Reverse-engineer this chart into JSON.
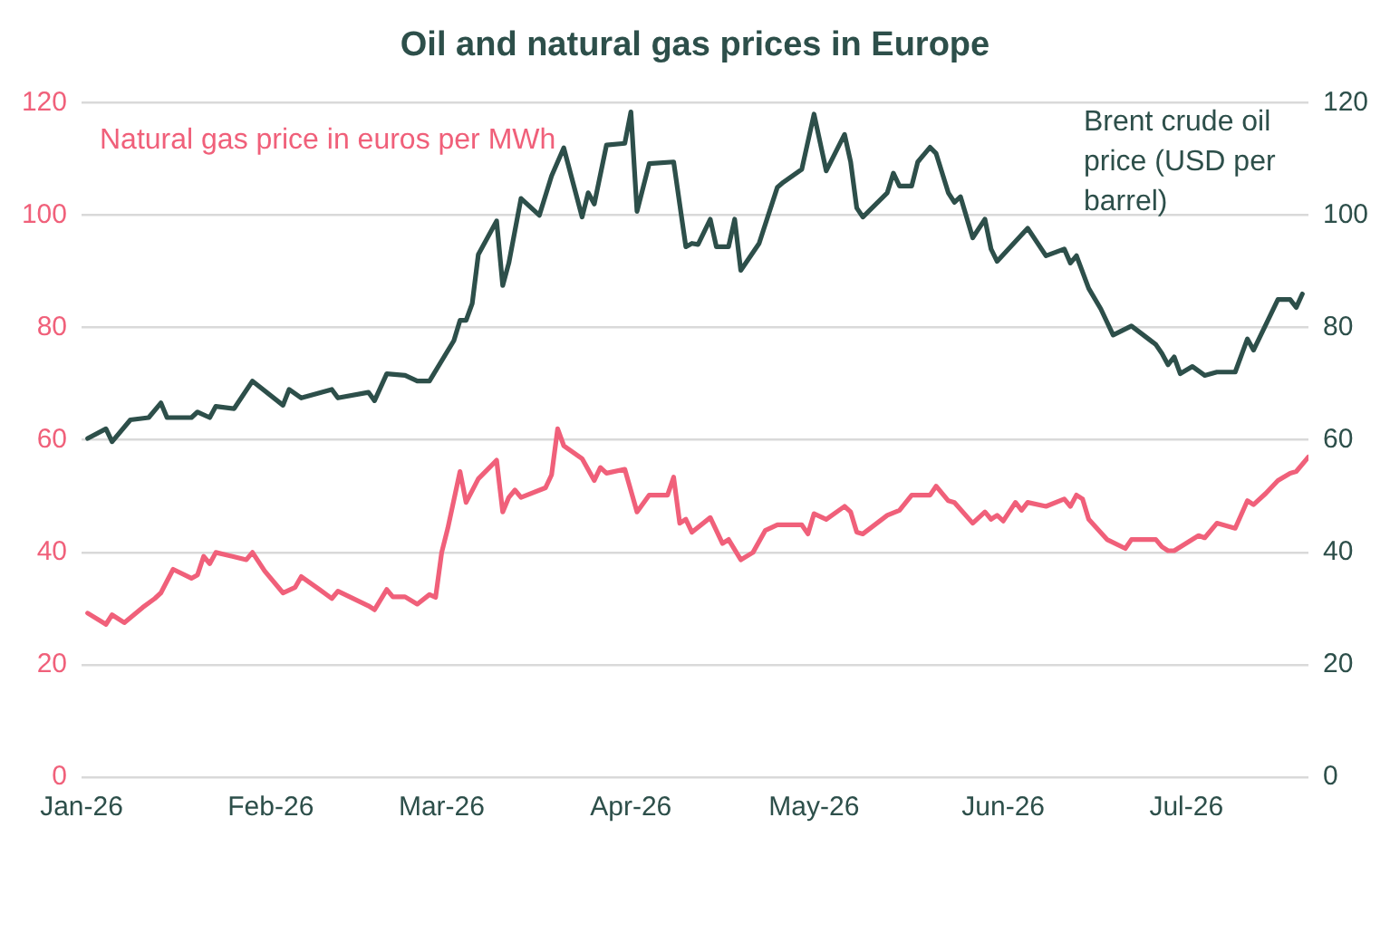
{
  "chart_data": {
    "type": "line",
    "title": "Oil and natural gas prices in Europe",
    "xlim": [
      "2026-01-01",
      "2026-07-21"
    ],
    "xticks": [
      {
        "value": "2026-01-01",
        "label": "Jan-26"
      },
      {
        "value": "2026-02-01",
        "label": "Feb-26"
      },
      {
        "value": "2026-03-01",
        "label": "Mar-26"
      },
      {
        "value": "2026-04-01",
        "label": "Apr-26"
      },
      {
        "value": "2026-05-01",
        "label": "May-26"
      },
      {
        "value": "2026-06-01",
        "label": "Jun-26"
      },
      {
        "value": "2026-07-01",
        "label": "Jul-26"
      }
    ],
    "ylim": [
      0,
      120
    ],
    "yticks": [
      0,
      20,
      40,
      60,
      80,
      100,
      120
    ],
    "y2lim": [
      0,
      120
    ],
    "y2ticks": [
      0,
      20,
      40,
      60,
      80,
      100,
      120
    ],
    "grid": "y",
    "series": [
      {
        "name": "Natural gas price in euros per MWh",
        "color": "#f0607a",
        "x": [
          "2026-01-02",
          "2026-01-05",
          "2026-01-06",
          "2026-01-08",
          "2026-01-11",
          "2026-01-13",
          "2026-01-14",
          "2026-01-16",
          "2026-01-19",
          "2026-01-20",
          "2026-01-21",
          "2026-01-22",
          "2026-01-23",
          "2026-01-28",
          "2026-01-29",
          "2026-01-31",
          "2026-02-03",
          "2026-02-05",
          "2026-02-06",
          "2026-02-09",
          "2026-02-11",
          "2026-02-12",
          "2026-02-17",
          "2026-02-18",
          "2026-02-20",
          "2026-02-21",
          "2026-02-23",
          "2026-02-25",
          "2026-02-27",
          "2026-02-28",
          "2026-03-01",
          "2026-03-02",
          "2026-03-04",
          "2026-03-05",
          "2026-03-07",
          "2026-03-10",
          "2026-03-11",
          "2026-03-12",
          "2026-03-13",
          "2026-03-14",
          "2026-03-18",
          "2026-03-19",
          "2026-03-20",
          "2026-03-21",
          "2026-03-24",
          "2026-03-26",
          "2026-03-27",
          "2026-03-28",
          "2026-03-31",
          "2026-04-02",
          "2026-04-04",
          "2026-04-07",
          "2026-04-08",
          "2026-04-09",
          "2026-04-10",
          "2026-04-11",
          "2026-04-14",
          "2026-04-16",
          "2026-04-17",
          "2026-04-19",
          "2026-04-21",
          "2026-04-23",
          "2026-04-25",
          "2026-04-29",
          "2026-04-30",
          "2026-05-01",
          "2026-05-03",
          "2026-05-06",
          "2026-05-07",
          "2026-05-08",
          "2026-05-09",
          "2026-05-13",
          "2026-05-15",
          "2026-05-17",
          "2026-05-20",
          "2026-05-21",
          "2026-05-23",
          "2026-05-24",
          "2026-05-27",
          "2026-05-29",
          "2026-05-30",
          "2026-05-31",
          "2026-06-01",
          "2026-06-03",
          "2026-06-04",
          "2026-06-05",
          "2026-06-08",
          "2026-06-11",
          "2026-06-12",
          "2026-06-13",
          "2026-06-14",
          "2026-06-15",
          "2026-06-18",
          "2026-06-21",
          "2026-06-22",
          "2026-06-26",
          "2026-06-27",
          "2026-06-28",
          "2026-06-29",
          "2026-07-03",
          "2026-07-04",
          "2026-07-06",
          "2026-07-09",
          "2026-07-11",
          "2026-07-12",
          "2026-07-14",
          "2026-07-16",
          "2026-07-18",
          "2026-07-19",
          "2026-07-21"
        ],
        "values": [
          29.2,
          27.2,
          28.9,
          27.5,
          30.2,
          31.8,
          32.8,
          37,
          35.4,
          36,
          39.3,
          38,
          40,
          38.7,
          40,
          36.7,
          32.8,
          33.8,
          35.7,
          33.4,
          31.8,
          33.1,
          30.5,
          29.8,
          33.4,
          32.1,
          32.1,
          30.8,
          32.5,
          32,
          40,
          44.3,
          54.4,
          48.9,
          53.1,
          56.4,
          47.2,
          49.8,
          51.1,
          49.8,
          51.5,
          53.8,
          62,
          59,
          56.7,
          52.8,
          55.1,
          54.1,
          54.8,
          47.2,
          50.2,
          50.2,
          53.4,
          45.2,
          45.9,
          43.6,
          46.2,
          41.6,
          42.3,
          38.7,
          40,
          43.9,
          44.9,
          44.9,
          43.3,
          46.9,
          45.9,
          48.2,
          47.2,
          43.6,
          43.3,
          46.6,
          47.5,
          50.2,
          50.2,
          51.8,
          49.2,
          48.9,
          45.2,
          47.2,
          45.9,
          46.6,
          45.6,
          48.9,
          47.5,
          48.9,
          48.2,
          49.5,
          48.2,
          50.2,
          49.5,
          45.9,
          42.3,
          40.7,
          42.3,
          42.3,
          41,
          40.3,
          40.3,
          43,
          42.6,
          45.2,
          44.3,
          49.2,
          48.5,
          50.5,
          52.8,
          54.1,
          54.4,
          57
        ]
      },
      {
        "name": "Brent crude oil price (USD per barrel)",
        "color": "#2d4f4a",
        "axis": "y2",
        "x": [
          "2026-01-02",
          "2026-01-05",
          "2026-01-06",
          "2026-01-09",
          "2026-01-12",
          "2026-01-14",
          "2026-01-15",
          "2026-01-19",
          "2026-01-20",
          "2026-01-22",
          "2026-01-23",
          "2026-01-26",
          "2026-01-29",
          "2026-02-03",
          "2026-02-04",
          "2026-02-06",
          "2026-02-11",
          "2026-02-12",
          "2026-02-17",
          "2026-02-18",
          "2026-02-20",
          "2026-02-23",
          "2026-02-25",
          "2026-02-27",
          "2026-03-03",
          "2026-03-04",
          "2026-03-05",
          "2026-03-06",
          "2026-03-07",
          "2026-03-10",
          "2026-03-11",
          "2026-03-12",
          "2026-03-14",
          "2026-03-17",
          "2026-03-19",
          "2026-03-21",
          "2026-03-24",
          "2026-03-25",
          "2026-03-26",
          "2026-03-28",
          "2026-03-31",
          "2026-04-01",
          "2026-04-02",
          "2026-04-04",
          "2026-04-08",
          "2026-04-10",
          "2026-04-11",
          "2026-04-12",
          "2026-04-14",
          "2026-04-15",
          "2026-04-17",
          "2026-04-18",
          "2026-04-19",
          "2026-04-22",
          "2026-04-25",
          "2026-04-26",
          "2026-04-29",
          "2026-05-01",
          "2026-05-03",
          "2026-05-06",
          "2026-05-07",
          "2026-05-08",
          "2026-05-09",
          "2026-05-13",
          "2026-05-14",
          "2026-05-15",
          "2026-05-17",
          "2026-05-18",
          "2026-05-20",
          "2026-05-21",
          "2026-05-23",
          "2026-05-24",
          "2026-05-25",
          "2026-05-27",
          "2026-05-29",
          "2026-05-30",
          "2026-05-31",
          "2026-06-05",
          "2026-06-08",
          "2026-06-11",
          "2026-06-12",
          "2026-06-13",
          "2026-06-15",
          "2026-06-17",
          "2026-06-19",
          "2026-06-22",
          "2026-06-26",
          "2026-06-27",
          "2026-06-28",
          "2026-06-29",
          "2026-06-30",
          "2026-07-02",
          "2026-07-04",
          "2026-07-06",
          "2026-07-09",
          "2026-07-11",
          "2026-07-12",
          "2026-07-16",
          "2026-07-18",
          "2026-07-19",
          "2026-07-20"
        ],
        "values": [
          60.3,
          62,
          59.7,
          63.6,
          64,
          66.6,
          64,
          64,
          65,
          64,
          66,
          65.6,
          70.5,
          66.2,
          69,
          67.5,
          69,
          67.5,
          68.5,
          67,
          71.8,
          71.5,
          70.5,
          70.5,
          77.7,
          81.3,
          81.3,
          84.3,
          93,
          99,
          87.5,
          91.5,
          103,
          100,
          107,
          112,
          99.7,
          104,
          102,
          112.5,
          112.8,
          118.4,
          100.7,
          109.2,
          109.5,
          94.4,
          95,
          94.8,
          99.3,
          94.4,
          94.4,
          99.3,
          90.2,
          95,
          105,
          105.9,
          108.2,
          118,
          107.9,
          114.4,
          109.5,
          101.3,
          99.7,
          104,
          107.5,
          105.2,
          105.2,
          109.5,
          112.1,
          111,
          104,
          102.3,
          103.3,
          96,
          99.3,
          94,
          91.8,
          97.7,
          92.8,
          94,
          91.5,
          92.8,
          87,
          83.3,
          78.7,
          80.3,
          77,
          75.4,
          73.4,
          74.8,
          71.8,
          73.1,
          71.5,
          72.1,
          72.1,
          78,
          76,
          85,
          85,
          83.6,
          86
        ]
      }
    ]
  }
}
